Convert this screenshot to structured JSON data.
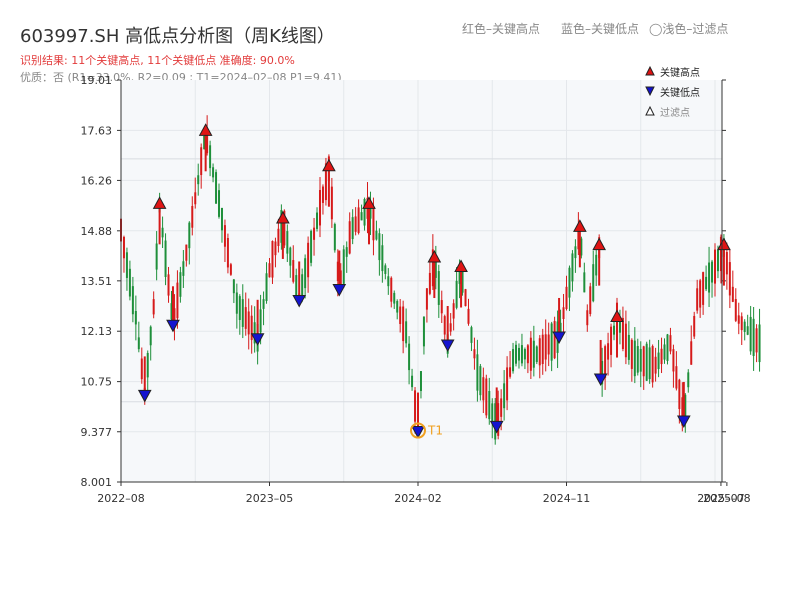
{
  "header": {
    "title": "603997.SH 高低点分析图（周K线图）",
    "legend_red": "红色–关键高点",
    "legend_blue": "蓝色–关键低点",
    "legend_circle": "◯浅色–过滤点",
    "result_text": "识别结果: 11个关键高点, 11个关键低点   准确度: 90.0%",
    "quality_text": "优质：否  (R1=33.0%, R2=0.09 ; T1=2024–02–08 P1=9.41)"
  },
  "chart_data": {
    "type": "candlestick",
    "title": "603997.SH 高低点分析图（周K线图）",
    "y_ticks": [
      "8.001",
      "9.377",
      "10.75",
      "12.13",
      "13.51",
      "14.88",
      "16.26",
      "17.63",
      "19.01"
    ],
    "ylim": [
      8.001,
      19.01
    ],
    "x_ticks": [
      "2022–08",
      "2023–05",
      "2024–02",
      "2024–11",
      "2025–07",
      "2025–08"
    ],
    "legend": [
      {
        "label": "关键高点",
        "color": "#dd1111",
        "marker": "triangle-up"
      },
      {
        "label": "关键低点",
        "color": "#1111cc",
        "marker": "triangle-down"
      },
      {
        "label": "过滤点",
        "color": "#ffffff",
        "marker": "triangle-up-outline"
      }
    ],
    "annotation": {
      "label": "T1",
      "date_index": 2.05,
      "price": 9.41
    },
    "key_highs": [
      {
        "x_index": 0.26,
        "price": 15.55
      },
      {
        "x_index": 0.57,
        "price": 17.55
      },
      {
        "x_index": 1.09,
        "price": 15.15
      },
      {
        "x_index": 1.4,
        "price": 16.58
      },
      {
        "x_index": 1.67,
        "price": 15.55
      },
      {
        "x_index": 2.11,
        "price": 14.08
      },
      {
        "x_index": 2.29,
        "price": 13.82
      },
      {
        "x_index": 3.09,
        "price": 14.92
      },
      {
        "x_index": 3.22,
        "price": 14.42
      },
      {
        "x_index": 3.34,
        "price": 12.45
      },
      {
        "x_index": 4.06,
        "price": 14.42
      }
    ],
    "key_lows": [
      {
        "x_index": 0.16,
        "price": 10.4
      },
      {
        "x_index": 0.35,
        "price": 12.32
      },
      {
        "x_index": 0.92,
        "price": 11.95
      },
      {
        "x_index": 1.2,
        "price": 13.0
      },
      {
        "x_index": 1.47,
        "price": 13.3
      },
      {
        "x_index": 2.0,
        "price": 9.41
      },
      {
        "x_index": 2.2,
        "price": 11.78
      },
      {
        "x_index": 2.53,
        "price": 9.55
      },
      {
        "x_index": 2.95,
        "price": 12.0
      },
      {
        "x_index": 3.23,
        "price": 10.85
      },
      {
        "x_index": 3.79,
        "price": 9.7
      }
    ],
    "price_path": [
      [
        0.0,
        14.9
      ],
      [
        0.1,
        12.5
      ],
      [
        0.16,
        10.4
      ],
      [
        0.22,
        12.8
      ],
      [
        0.26,
        15.55
      ],
      [
        0.35,
        12.32
      ],
      [
        0.45,
        14.5
      ],
      [
        0.57,
        17.55
      ],
      [
        0.68,
        15.2
      ],
      [
        0.78,
        12.9
      ],
      [
        0.92,
        11.95
      ],
      [
        1.0,
        13.8
      ],
      [
        1.09,
        15.15
      ],
      [
        1.2,
        13.0
      ],
      [
        1.3,
        14.8
      ],
      [
        1.4,
        16.58
      ],
      [
        1.47,
        13.3
      ],
      [
        1.55,
        14.9
      ],
      [
        1.67,
        15.55
      ],
      [
        1.8,
        13.5
      ],
      [
        1.92,
        12.1
      ],
      [
        2.0,
        9.41
      ],
      [
        2.05,
        12.8
      ],
      [
        2.11,
        14.08
      ],
      [
        2.2,
        11.78
      ],
      [
        2.29,
        13.82
      ],
      [
        2.4,
        11.0
      ],
      [
        2.53,
        9.55
      ],
      [
        2.65,
        11.5
      ],
      [
        2.8,
        11.5
      ],
      [
        2.95,
        12.0
      ],
      [
        3.09,
        14.92
      ],
      [
        3.14,
        12.5
      ],
      [
        3.22,
        14.42
      ],
      [
        3.23,
        10.85
      ],
      [
        3.34,
        12.45
      ],
      [
        3.45,
        11.4
      ],
      [
        3.6,
        11.2
      ],
      [
        3.7,
        11.8
      ],
      [
        3.79,
        9.7
      ],
      [
        3.88,
        13.0
      ],
      [
        4.0,
        13.9
      ],
      [
        4.06,
        14.42
      ],
      [
        4.15,
        12.5
      ],
      [
        4.25,
        12.0
      ],
      [
        4.3,
        11.8
      ]
    ],
    "grid": true
  }
}
